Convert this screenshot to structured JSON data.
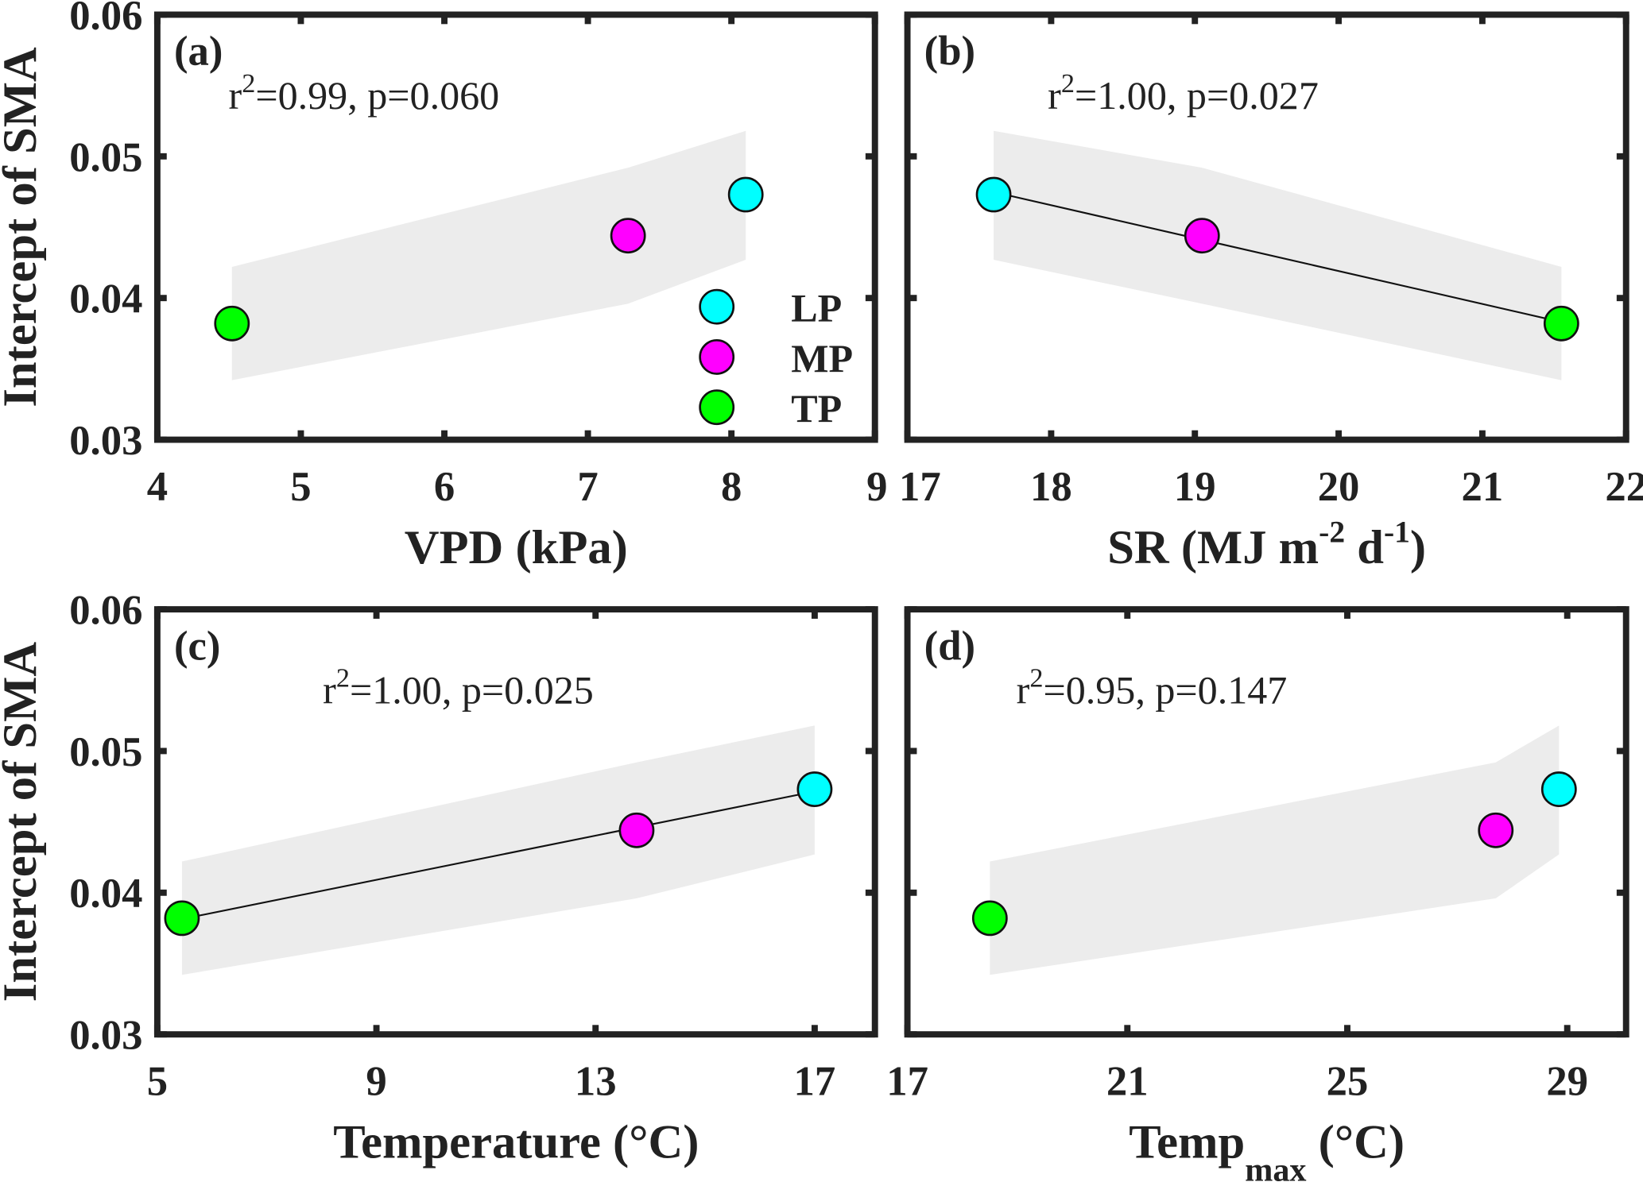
{
  "colors": {
    "LP": "#00ffff",
    "MP": "#ff00ff",
    "TP": "#00ff00",
    "band": "#ececec",
    "frame": "#222222"
  },
  "legend": {
    "placement": "bottom-right of panel (a)",
    "entries": [
      "LP",
      "MP",
      "TP"
    ]
  },
  "chart_data": [
    {
      "type": "scatter",
      "panel_label": "(a)",
      "ylabel": "Intercept of SMA",
      "xlabel_parts": [
        {
          "t": "VPD (kPa)"
        }
      ],
      "annotation": {
        "prefix": "r",
        "sup": "2",
        "rest": "=0.99, p=0.060"
      },
      "xlim": [
        4,
        9
      ],
      "ylim": [
        0.03,
        0.06
      ],
      "xticks": [
        "4",
        "5",
        "6",
        "7",
        "8",
        "9"
      ],
      "yticks": [
        "0.03",
        "0.04",
        "0.05",
        "0.06"
      ],
      "regression_line": false,
      "points": [
        {
          "name": "TP",
          "x": 4.52,
          "y": 0.0382
        },
        {
          "name": "MP",
          "x": 7.28,
          "y": 0.0444
        },
        {
          "name": "LP",
          "x": 8.1,
          "y": 0.0473
        }
      ],
      "band": {
        "x": [
          4.52,
          7.28,
          8.1
        ],
        "upper": [
          0.0422,
          0.0492,
          0.0518
        ],
        "lower": [
          0.0342,
          0.0396,
          0.0427
        ]
      }
    },
    {
      "type": "scatter",
      "panel_label": "(b)",
      "ylabel": "",
      "xlabel_parts": [
        {
          "t": "SR (MJ m"
        },
        {
          "t": "-2",
          "sup": true
        },
        {
          "t": " d"
        },
        {
          "t": "-1",
          "sup": true
        },
        {
          "t": ")"
        }
      ],
      "annotation": {
        "prefix": "r",
        "sup": "2",
        "rest": "=1.00, p=0.027"
      },
      "xlim": [
        17,
        22
      ],
      "ylim": [
        0.03,
        0.06
      ],
      "xticks": [
        "17",
        "18",
        "19",
        "20",
        "21",
        "22"
      ],
      "yticks": [],
      "regression_line": true,
      "points": [
        {
          "name": "LP",
          "x": 17.6,
          "y": 0.0473
        },
        {
          "name": "MP",
          "x": 19.05,
          "y": 0.0444
        },
        {
          "name": "TP",
          "x": 21.55,
          "y": 0.0382
        }
      ],
      "band": {
        "x": [
          17.6,
          19.05,
          21.55
        ],
        "upper": [
          0.0518,
          0.0492,
          0.0422
        ],
        "lower": [
          0.0427,
          0.0396,
          0.0342
        ]
      }
    },
    {
      "type": "scatter",
      "panel_label": "(c)",
      "ylabel": "Intercept of SMA",
      "xlabel_parts": [
        {
          "t": "Temperature (°C)"
        }
      ],
      "annotation": {
        "prefix": "r",
        "sup": "2",
        "rest": "=1.00, p=0.025"
      },
      "xlim": [
        5,
        18.1
      ],
      "ylim": [
        0.03,
        0.06
      ],
      "xticks": [
        "5",
        "9",
        "13",
        "17"
      ],
      "yticks": [
        "0.03",
        "0.04",
        "0.05",
        "0.06"
      ],
      "regression_line": true,
      "points": [
        {
          "name": "TP",
          "x": 5.45,
          "y": 0.0382
        },
        {
          "name": "MP",
          "x": 13.75,
          "y": 0.0444
        },
        {
          "name": "LP",
          "x": 17.0,
          "y": 0.0473
        }
      ],
      "band": {
        "x": [
          5.45,
          13.75,
          17.0
        ],
        "upper": [
          0.0422,
          0.0492,
          0.0518
        ],
        "lower": [
          0.0342,
          0.0396,
          0.0427
        ]
      }
    },
    {
      "type": "scatter",
      "panel_label": "(d)",
      "ylabel": "",
      "xlabel_parts": [
        {
          "t": "Temp"
        },
        {
          "t": "max",
          "sub": true
        },
        {
          "t": " (°C)"
        }
      ],
      "annotation": {
        "prefix": "r",
        "sup": "2",
        "rest": "=0.95, p=0.147"
      },
      "xlim": [
        17,
        30.07
      ],
      "ylim": [
        0.03,
        0.06
      ],
      "xticks": [
        "17",
        "21",
        "25",
        "29"
      ],
      "yticks": [],
      "regression_line": false,
      "points": [
        {
          "name": "TP",
          "x": 18.5,
          "y": 0.0382
        },
        {
          "name": "MP",
          "x": 27.7,
          "y": 0.0444
        },
        {
          "name": "LP",
          "x": 28.85,
          "y": 0.0473
        }
      ],
      "band": {
        "x": [
          18.5,
          27.7,
          28.85
        ],
        "upper": [
          0.0422,
          0.0492,
          0.0518
        ],
        "lower": [
          0.0342,
          0.0396,
          0.0427
        ]
      }
    }
  ]
}
